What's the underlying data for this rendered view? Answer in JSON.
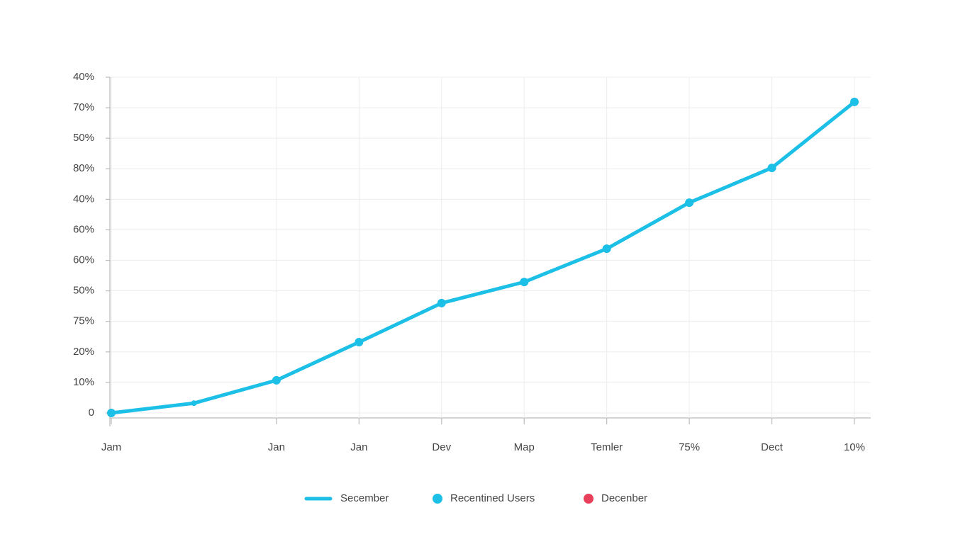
{
  "chart_data": {
    "type": "line",
    "categories": [
      "Jam",
      null,
      "Jan",
      "Jan",
      "Dev",
      "Map",
      "Temler",
      "75%",
      "Dect",
      "10%"
    ],
    "series": [
      {
        "name": "Secember",
        "color": "#1cbfe6",
        "values": [
          0,
          0.32,
          1.07,
          2.32,
          3.6,
          4.29,
          5.38,
          6.89,
          8.03,
          10.19
        ]
      }
    ],
    "legend_extra": [
      {
        "name": "Recentined Users",
        "color": "#1cbfe6",
        "symbol": "dot"
      },
      {
        "name": "Decenber",
        "color": "#e8405a",
        "symbol": "dot"
      }
    ],
    "ylim": [
      0,
      11
    ],
    "yticks": [
      0,
      {
        "value": 1,
        "label": "10%"
      },
      {
        "value": 2,
        "label": "20%"
      },
      {
        "value": 3,
        "label": "75%"
      },
      {
        "value": 4,
        "label": "50%"
      },
      {
        "value": 5,
        "label": "60%"
      },
      {
        "value": 6,
        "label": "60%"
      },
      {
        "value": 7,
        "label": "40%"
      },
      {
        "value": 8,
        "label": "80%"
      },
      {
        "value": 9,
        "label": "50%"
      },
      {
        "value": 10,
        "label": "70%"
      },
      {
        "value": 11,
        "label": "40%"
      }
    ],
    "grid": true
  }
}
